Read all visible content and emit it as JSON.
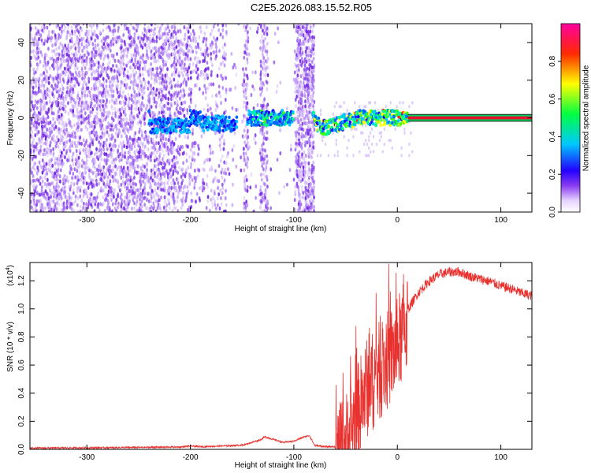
{
  "title": "C2E5.2026.083.15.52.R05",
  "chart_data": [
    {
      "type": "heatmap",
      "xlabel": "Height of straight line (km)",
      "ylabel": "Frequency (Hz)",
      "xlim": [
        -355,
        130
      ],
      "ylim": [
        -50,
        50
      ],
      "x_ticks": [
        -300,
        -200,
        -100,
        0,
        100
      ],
      "y_ticks": [
        -40,
        -20,
        0,
        20,
        40
      ],
      "colorbar": {
        "label": "Normalized spectral amplitude",
        "range": [
          0,
          1
        ],
        "ticks": [
          "0.0",
          "0.2",
          "0.4",
          "0.6",
          "0.8"
        ],
        "colors": [
          "#ffffff",
          "#8a3cf0",
          "#2200ff",
          "#00c8ff",
          "#00ff40",
          "#ffff00",
          "#ff2a00",
          "#ff00a0"
        ]
      },
      "regions": [
        {
          "x": [
            -355,
            -80
          ],
          "density": 0.55,
          "note": "broadband noise"
        },
        {
          "x": [
            -240,
            10
          ],
          "freq": 0,
          "band": 8,
          "note": "signal trace"
        },
        {
          "x": [
            10,
            130
          ],
          "freq": 0,
          "band": 2,
          "note": "strong carrier"
        }
      ]
    },
    {
      "type": "line",
      "xlabel": "Height of straight line (km)",
      "ylabel": "SNR (10 * v/v)",
      "y_multiplier": "(x10",
      "y_multiplier_exp": "4",
      "xlim": [
        -355,
        130
      ],
      "ylim": [
        0,
        1.33
      ],
      "x_ticks": [
        -300,
        -200,
        -100,
        0,
        100
      ],
      "y_ticks": [
        "0.0",
        "0.2",
        "0.4",
        "0.6",
        "0.8",
        "1.0",
        "1.2"
      ],
      "color": "#e8322f",
      "series": [
        {
          "x": [
            -355,
            -300,
            -250,
            -210,
            -200,
            -190,
            -150,
            -132,
            -128,
            -110,
            -100,
            -90,
            -85,
            -80,
            -70,
            -60,
            -55,
            -50,
            -45,
            -40,
            -35,
            -30,
            -25,
            -20,
            -15,
            -10,
            -5,
            0,
            5,
            10,
            20,
            30,
            40,
            50,
            60,
            70,
            80,
            90,
            100,
            110,
            120,
            130
          ],
          "y": [
            0.01,
            0.012,
            0.015,
            0.018,
            0.025,
            0.02,
            0.03,
            0.07,
            0.09,
            0.05,
            0.06,
            0.09,
            0.1,
            0.03,
            0.02,
            0.02,
            0.05,
            0.12,
            0.22,
            0.3,
            0.4,
            0.5,
            0.55,
            0.6,
            0.65,
            0.7,
            0.75,
            0.8,
            0.9,
            1.0,
            1.12,
            1.2,
            1.25,
            1.27,
            1.27,
            1.24,
            1.22,
            1.2,
            1.17,
            1.15,
            1.12,
            1.1
          ]
        }
      ]
    }
  ]
}
